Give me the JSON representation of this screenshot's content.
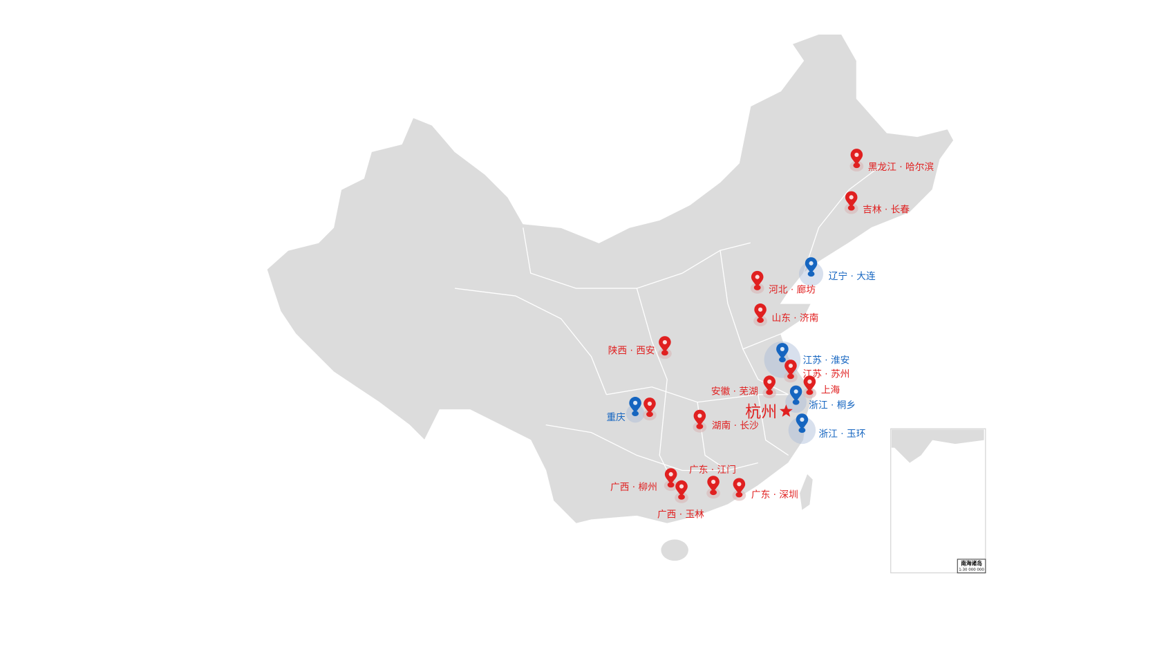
{
  "colors": {
    "land": "#dcdcdc",
    "border": "#ffffff",
    "red": "#e02020",
    "blue": "#1565c0",
    "halo_blue": "#a9bbd6"
  },
  "capital": {
    "label": "杭州",
    "icon": "star-icon"
  },
  "markers": [
    {
      "label": "黑龙江 · 哈尔滨",
      "type": "red"
    },
    {
      "label": "吉林 · 长春",
      "type": "red"
    },
    {
      "label": "辽宁 · 大连",
      "type": "blue"
    },
    {
      "label": "河北 · 廊坊",
      "type": "red"
    },
    {
      "label": "山东 · 济南",
      "type": "red"
    },
    {
      "label": "陕西 · 西安",
      "type": "red"
    },
    {
      "label": "江苏 · 淮安",
      "type": "blue"
    },
    {
      "label": "江苏 · 苏州",
      "type": "red"
    },
    {
      "label": "上海",
      "type": "red"
    },
    {
      "label": "安徽 · 芜湖",
      "type": "red"
    },
    {
      "label": "浙江 · 桐乡",
      "type": "blue"
    },
    {
      "label": "浙江 · 玉环",
      "type": "blue"
    },
    {
      "label": "重庆",
      "type": "blue"
    },
    {
      "label": "",
      "type": "red"
    },
    {
      "label": "湖南 · 长沙",
      "type": "red"
    },
    {
      "label": "广东 · 江门",
      "type": "red"
    },
    {
      "label": "广西 · 柳州",
      "type": "red"
    },
    {
      "label": "广西 · 玉林",
      "type": "red"
    },
    {
      "label": "广东 · 深圳",
      "type": "red"
    }
  ],
  "inset": {
    "title": "南海诸岛",
    "scale": "1:30 000 000"
  }
}
